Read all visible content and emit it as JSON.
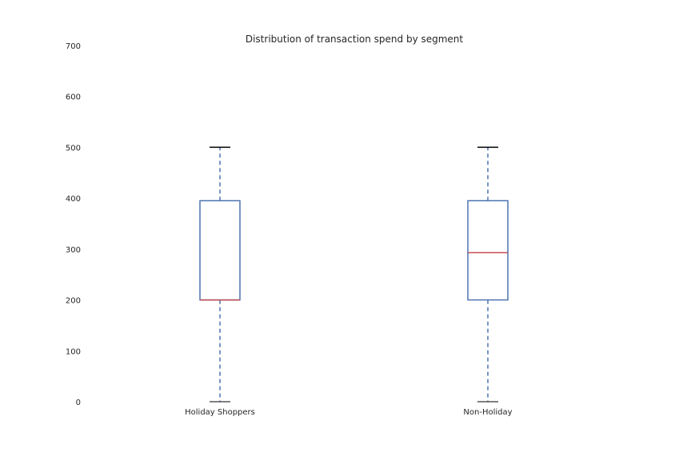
{
  "chart_data": {
    "type": "box",
    "title": "Distribution of transaction spend by segment",
    "xlabel": "",
    "ylabel": "",
    "ylim": [
      0,
      700
    ],
    "yticks": [
      0,
      100,
      200,
      300,
      400,
      500,
      600,
      700
    ],
    "grid": false,
    "categories": [
      "Holiday Shoppers",
      "Non-Holiday"
    ],
    "boxes": [
      {
        "category": "Holiday Shoppers",
        "whisker_low": 0,
        "q1": 200,
        "median": 200,
        "q3": 395,
        "whisker_high": 500
      },
      {
        "category": "Non-Holiday",
        "whisker_low": 0,
        "q1": 200,
        "median": 293,
        "q3": 395,
        "whisker_high": 500
      }
    ],
    "colors": {
      "box": "#4c72b0",
      "median": "#c44e52",
      "cap": "#000000"
    }
  }
}
